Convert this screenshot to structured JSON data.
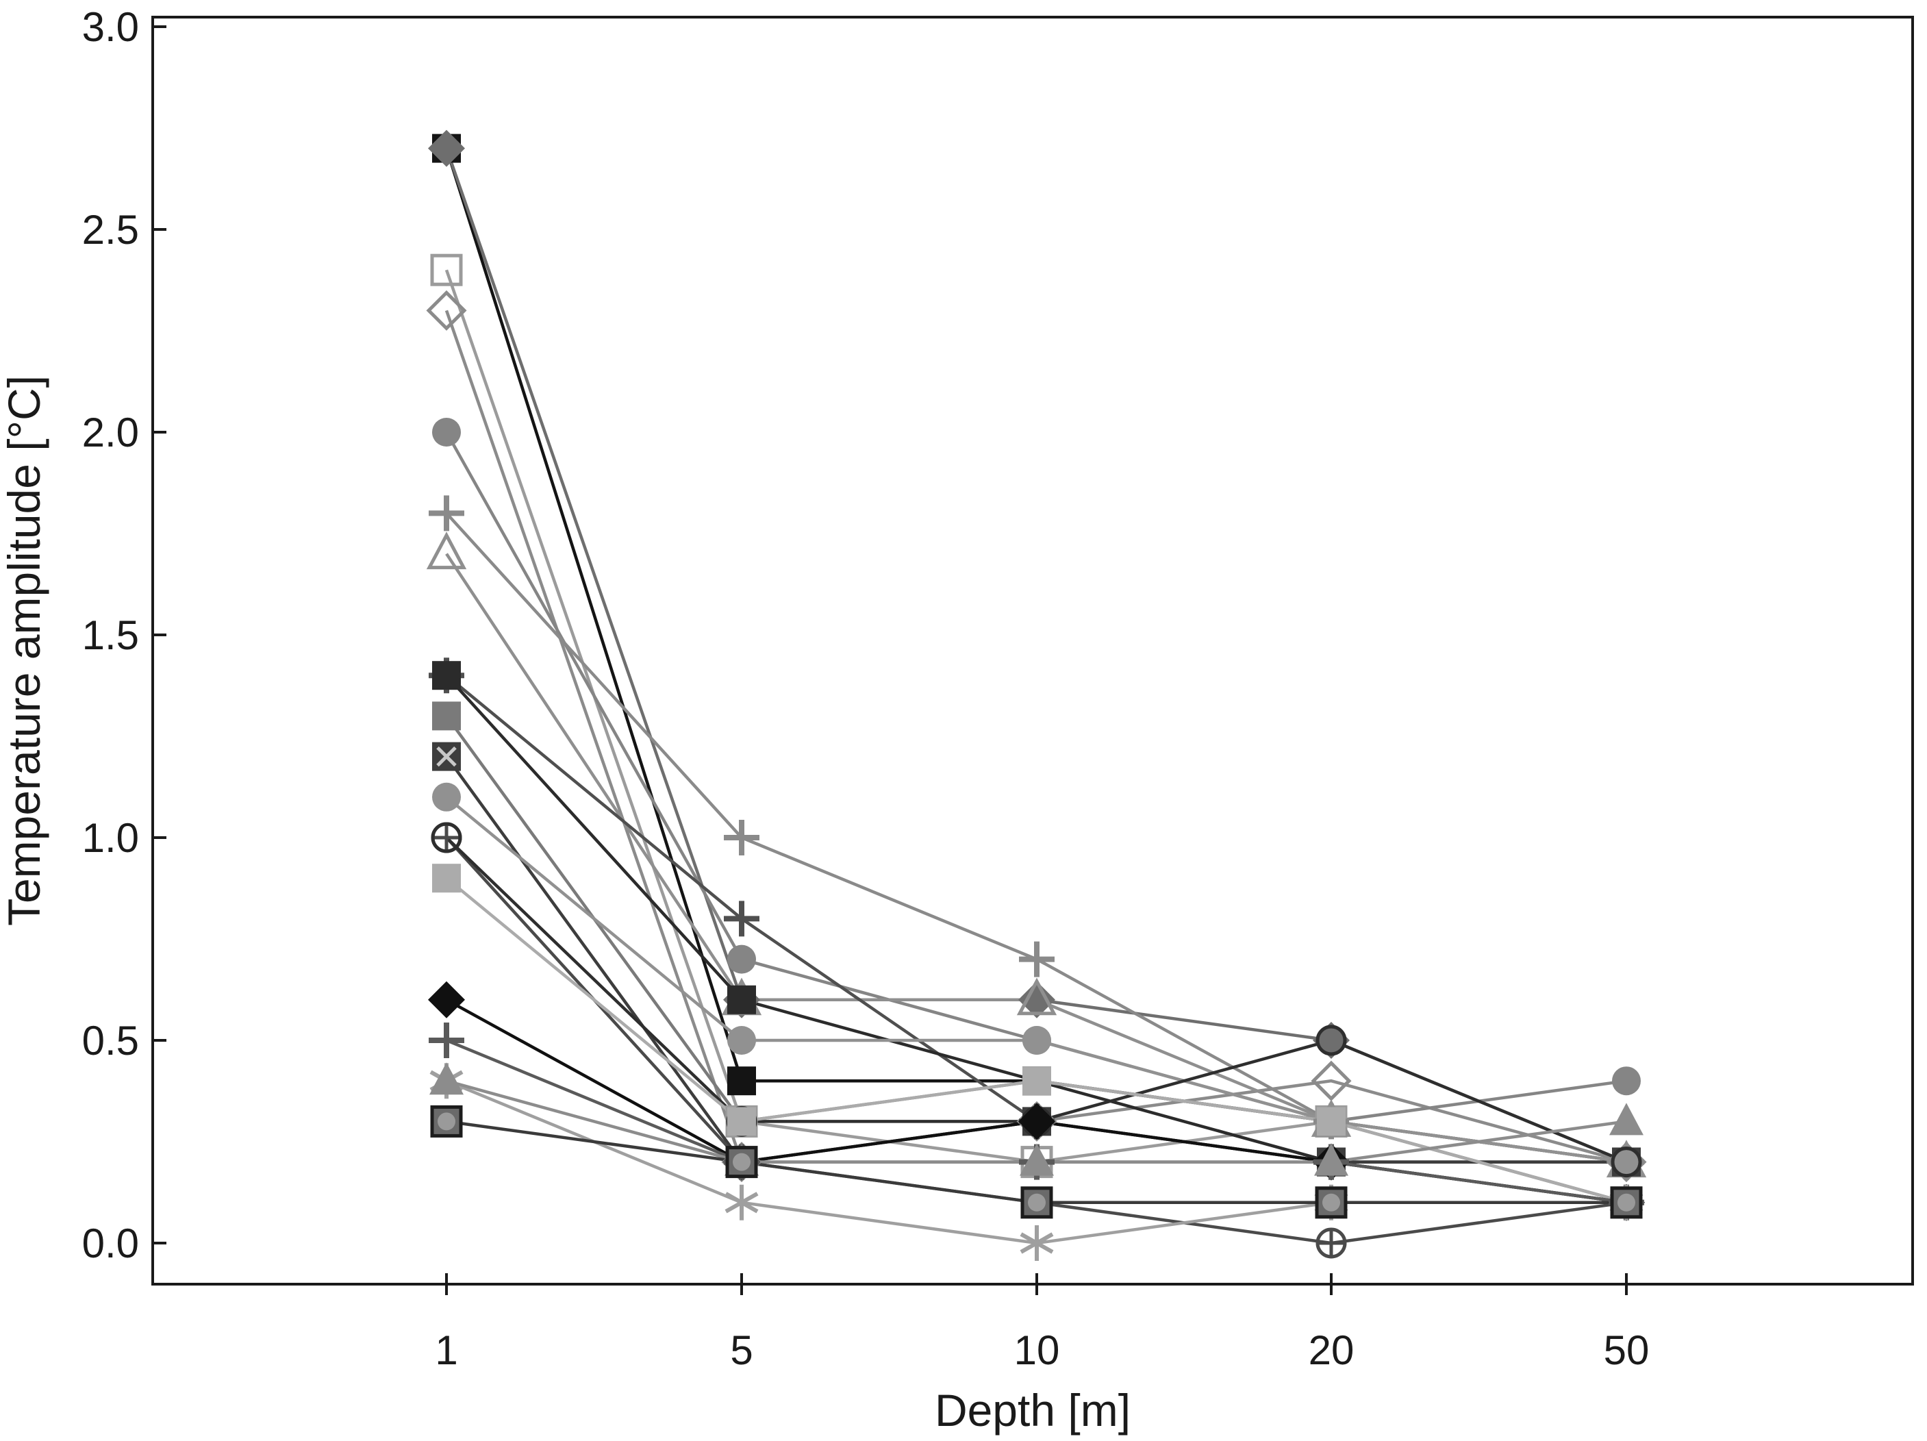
{
  "chart_data": {
    "type": "line",
    "title": "",
    "xlabel": "Depth [m]",
    "ylabel": "Temperature amplitude [°C]",
    "categories": [
      1,
      5,
      10,
      20,
      50
    ],
    "category_labels": [
      "1",
      "5",
      "10",
      "20",
      "50"
    ],
    "ylim": [
      0.0,
      3.0
    ],
    "yticks": [
      0.0,
      0.5,
      1.0,
      1.5,
      2.0,
      2.5,
      3.0
    ],
    "ytick_labels": [
      "0.0",
      "0.5",
      "1.0",
      "1.5",
      "2.0",
      "2.5",
      "3.0"
    ],
    "grid": "off",
    "legend": "none",
    "axis_color": "#1a1a1a",
    "background_color": "#ffffff",
    "series": [
      {
        "name": "black-filled-square",
        "marker": "square-filled",
        "color": "#141414",
        "values": [
          2.7,
          0.4,
          0.4,
          0.3,
          0.2
        ]
      },
      {
        "name": "gray-filled-diamond",
        "marker": "diamond-filled",
        "color": "#6e6e6e",
        "values": [
          2.7,
          0.6,
          0.6,
          0.5,
          0.2
        ]
      },
      {
        "name": "open-square",
        "marker": "square-open",
        "color": "#9b9b9b",
        "values": [
          2.4,
          0.3,
          0.2,
          0.3,
          0.1
        ]
      },
      {
        "name": "open-diamond",
        "marker": "diamond-open",
        "color": "#8b8b8b",
        "values": [
          2.3,
          0.2,
          0.3,
          0.4,
          0.2
        ]
      },
      {
        "name": "gray-filled-circle",
        "marker": "circle-filled",
        "color": "#858585",
        "values": [
          2.0,
          0.7,
          0.5,
          0.3,
          0.4
        ]
      },
      {
        "name": "gray-plus",
        "marker": "plus",
        "color": "#8a8a8a",
        "values": [
          1.8,
          1.0,
          0.7,
          0.3,
          0.2
        ]
      },
      {
        "name": "open-triangle",
        "marker": "triangle-open",
        "color": "#8f8f8f",
        "values": [
          1.7,
          0.6,
          0.6,
          0.3,
          0.2
        ]
      },
      {
        "name": "dark-plus",
        "marker": "plus",
        "color": "#4f4f4f",
        "values": [
          1.4,
          0.8,
          0.3,
          0.2,
          0.1
        ]
      },
      {
        "name": "dark-filled-square",
        "marker": "square-filled",
        "color": "#2b2b2b",
        "values": [
          1.4,
          0.6,
          0.4,
          0.2,
          0.2
        ]
      },
      {
        "name": "mid-gray-square",
        "marker": "square-filled",
        "color": "#7a7a7a",
        "values": [
          1.3,
          0.3,
          0.4,
          0.3,
          0.1
        ]
      },
      {
        "name": "x-in-square",
        "marker": "square-x",
        "color": "#3d3d3d",
        "values": [
          1.2,
          0.2,
          0.3,
          0.2,
          0.2
        ]
      },
      {
        "name": "light-gray-circle",
        "marker": "circle-filled",
        "color": "#919191",
        "values": [
          1.1,
          0.5,
          0.5,
          0.3,
          0.2
        ]
      },
      {
        "name": "circle-with-plus",
        "marker": "circle-plus",
        "color": "#4a4a4a",
        "values": [
          1.0,
          0.2,
          0.1,
          0.0,
          0.1
        ]
      },
      {
        "name": "open-dark-circle",
        "marker": "circle-open",
        "color": "#2e2e2e",
        "values": [
          1.0,
          0.3,
          0.3,
          0.5,
          0.2
        ]
      },
      {
        "name": "light-gray-square",
        "marker": "square-filled",
        "color": "#ababab",
        "values": [
          0.9,
          0.3,
          0.4,
          0.3,
          0.1
        ]
      },
      {
        "name": "black-filled-diamond",
        "marker": "diamond-filled",
        "color": "#101010",
        "values": [
          0.6,
          0.2,
          0.3,
          0.2,
          0.1
        ]
      },
      {
        "name": "medium-plus",
        "marker": "plus",
        "color": "#5a5a5a",
        "values": [
          0.5,
          0.2,
          0.2,
          0.2,
          0.1
        ]
      },
      {
        "name": "gray-asterisk",
        "marker": "asterisk",
        "color": "#9f9f9f",
        "values": [
          0.4,
          0.1,
          0.0,
          0.1,
          0.1
        ]
      },
      {
        "name": "gray-filled-triangle",
        "marker": "triangle-filled",
        "color": "#8c8c8c",
        "values": [
          0.4,
          0.2,
          0.2,
          0.2,
          0.3
        ]
      },
      {
        "name": "circle-in-square",
        "marker": "square-circle",
        "color": "#3a3a3a",
        "values": [
          0.3,
          0.2,
          0.1,
          0.1,
          0.1
        ]
      }
    ]
  }
}
